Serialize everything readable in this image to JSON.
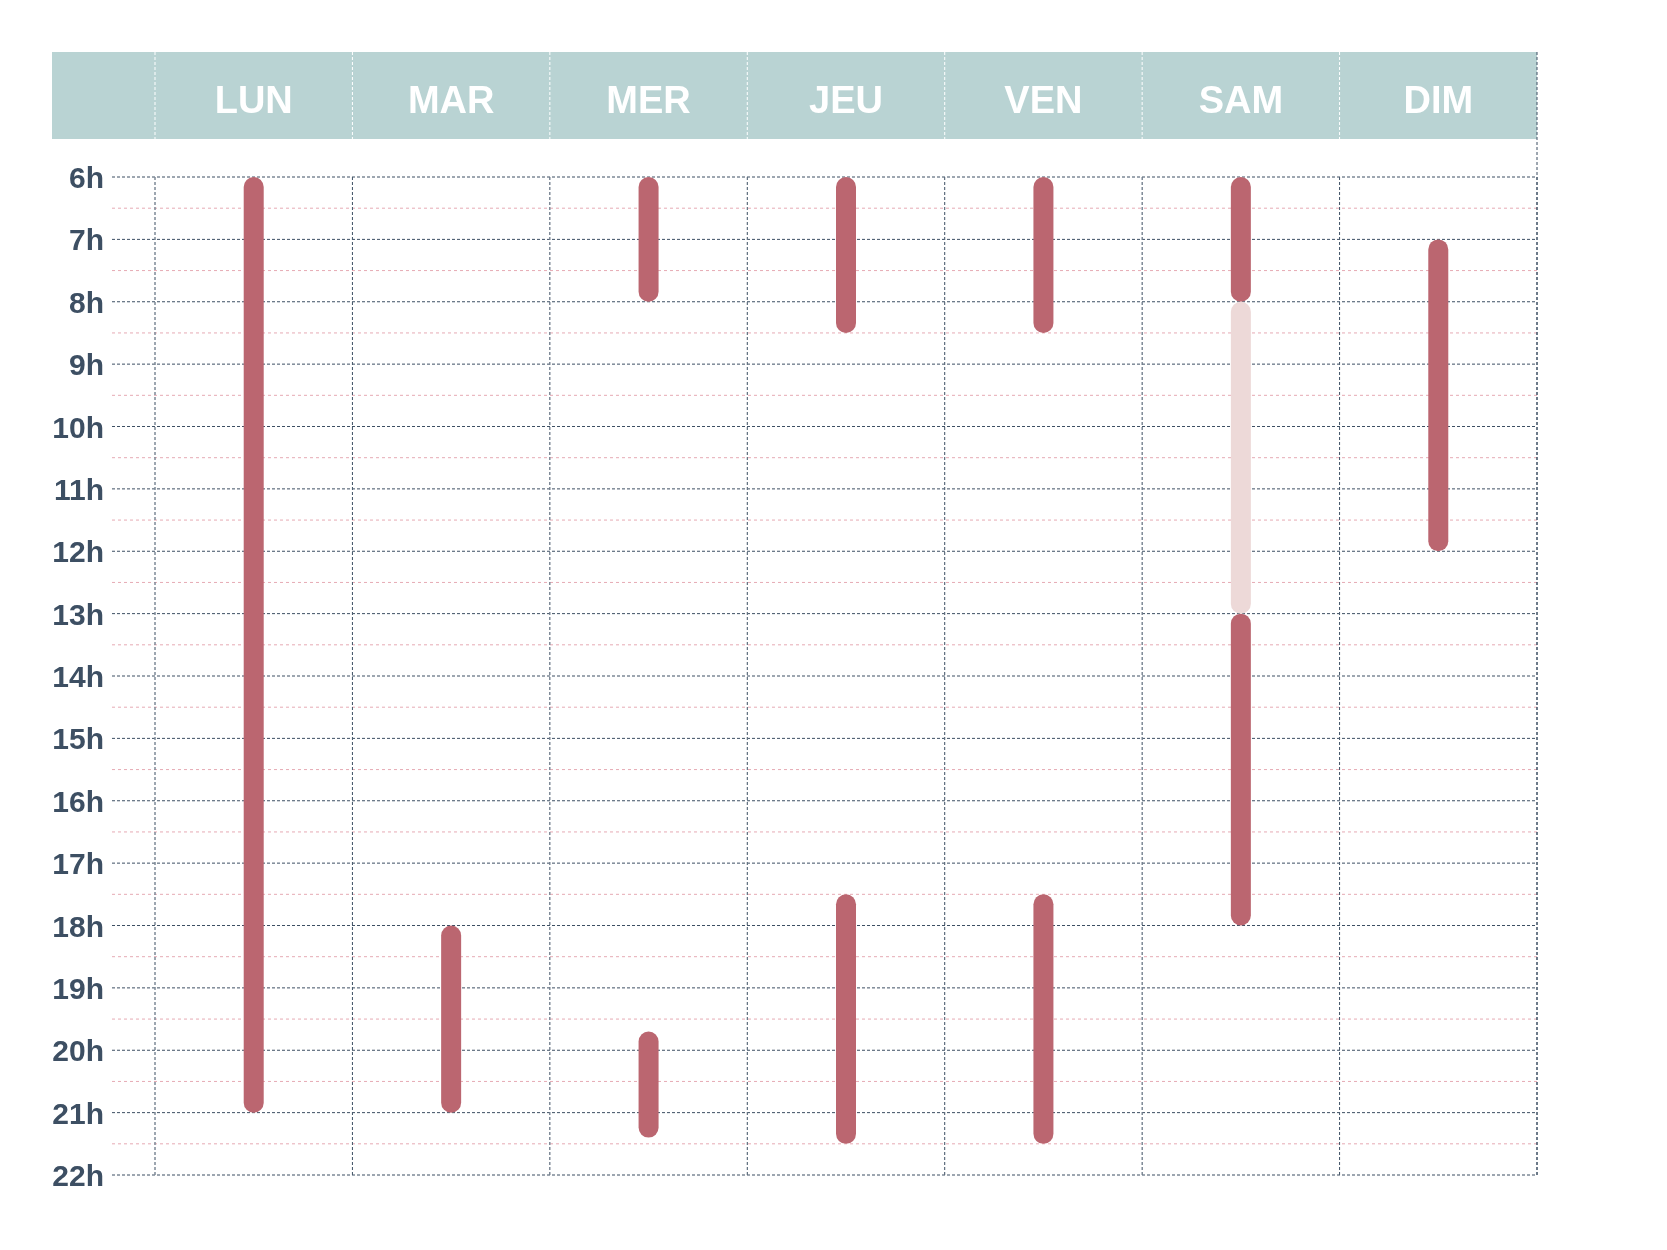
{
  "chart_data": {
    "type": "bar",
    "categories": [
      "LUN",
      "MAR",
      "MER",
      "JEU",
      "VEN",
      "SAM",
      "DIM"
    ],
    "series": [
      {
        "color": "#bb6670",
        "base": [
          6,
          18,
          6,
          6,
          6,
          6,
          7
        ],
        "values": [
          15,
          3,
          2,
          2.5,
          2.5,
          2,
          5
        ]
      },
      {
        "color": "#bb6670",
        "base": [
          null,
          null,
          19.7,
          17.5,
          17.5,
          13,
          null
        ],
        "values": [
          null,
          null,
          1.7,
          4,
          4,
          5,
          null
        ]
      },
      {
        "color": "#edd9d8",
        "base": [
          null,
          null,
          null,
          null,
          null,
          8,
          null
        ],
        "values": [
          null,
          null,
          null,
          null,
          null,
          5,
          null
        ]
      }
    ],
    "ylim": [
      22,
      6
    ],
    "yticks": [
      {
        "value": 6,
        "label": "6h"
      },
      {
        "value": 6.5,
        "label": null
      },
      {
        "value": 7,
        "label": "7h"
      },
      {
        "value": 7.5,
        "label": null
      },
      {
        "value": 8,
        "label": "8h"
      },
      {
        "value": 8.5,
        "label": null
      },
      {
        "value": 9,
        "label": "9h"
      },
      {
        "value": 9.5,
        "label": null
      },
      {
        "value": 10,
        "label": "10h"
      },
      {
        "value": 10.5,
        "label": null
      },
      {
        "value": 11,
        "label": "11h"
      },
      {
        "value": 11.5,
        "label": null
      },
      {
        "value": 12,
        "label": "12h"
      },
      {
        "value": 12.5,
        "label": null
      },
      {
        "value": 13,
        "label": "13h"
      },
      {
        "value": 13.5,
        "label": null
      },
      {
        "value": 14,
        "label": "14h"
      },
      {
        "value": 14.5,
        "label": null
      },
      {
        "value": 15,
        "label": "15h"
      },
      {
        "value": 15.5,
        "label": null
      },
      {
        "value": 16,
        "label": "16h"
      },
      {
        "value": 16.5,
        "label": null
      },
      {
        "value": 17,
        "label": "17h"
      },
      {
        "value": 17.5,
        "label": null
      },
      {
        "value": 18,
        "label": "18h"
      },
      {
        "value": 18.5,
        "label": null
      },
      {
        "value": 19,
        "label": "19h"
      },
      {
        "value": 19.5,
        "label": null
      },
      {
        "value": 20,
        "label": "20h"
      },
      {
        "value": 20.5,
        "label": null
      },
      {
        "value": 21,
        "label": "21h"
      },
      {
        "value": 21.5,
        "label": null
      },
      {
        "value": 22,
        "label": "22h"
      }
    ],
    "grid": true
  }
}
